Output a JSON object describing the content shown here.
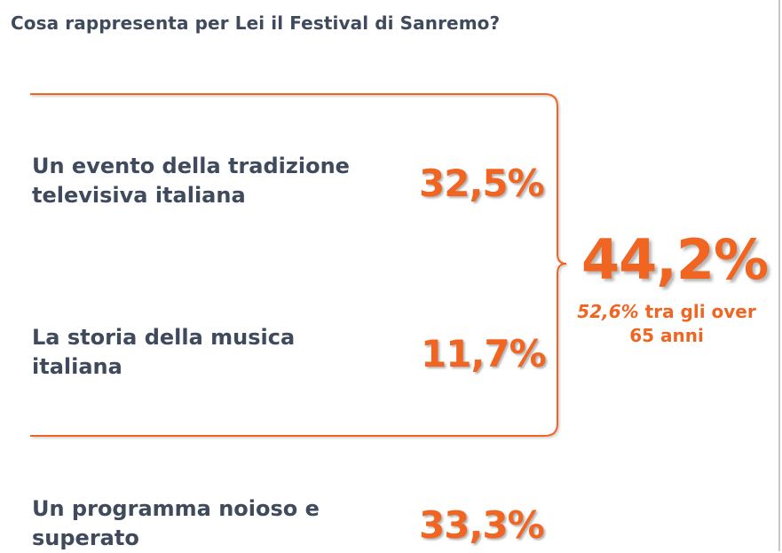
{
  "question": "Cosa rappresenta per Lei il Festival di Sanremo?",
  "accent_color": "#f06522",
  "text_color": "#3f4a5c",
  "chart_data": {
    "type": "table",
    "title": "Cosa rappresenta per Lei il Festival di Sanremo?",
    "rows": [
      {
        "label_line1": "Un evento della tradizione",
        "label_line2": "televisiva italiana",
        "value": 32.5,
        "display": "32,5%"
      },
      {
        "label_line1": "La storia della musica",
        "label_line2": "italiana",
        "value": 11.7,
        "display": "11,7%"
      },
      {
        "label_line1": "Un programma noioso e",
        "label_line2": "superato",
        "value": 33.3,
        "display": "33,3%"
      }
    ],
    "group_total": {
      "value": 44.2,
      "display": "44,2%"
    },
    "group_note": {
      "highlight": "52,6%",
      "line1_rest": "tra gli over",
      "line2": "65 anni"
    }
  }
}
